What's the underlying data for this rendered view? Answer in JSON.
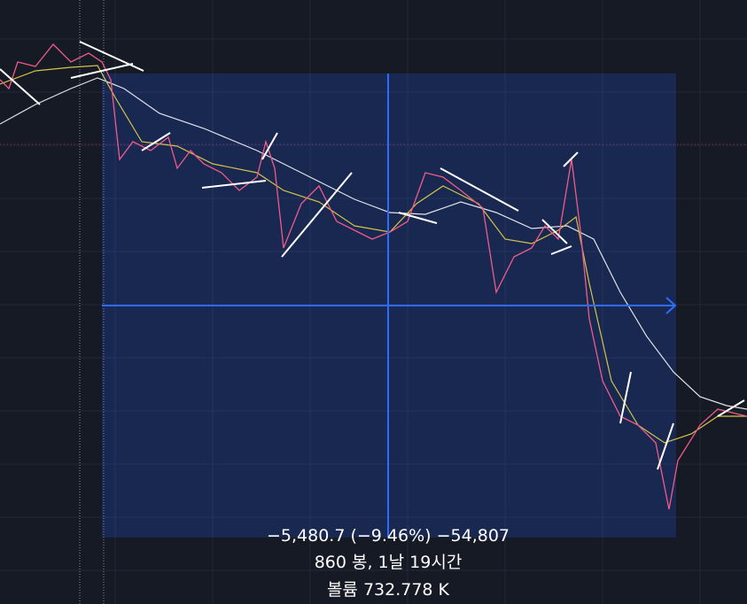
{
  "measure": {
    "change": "−5,480.7 (−9.46%) −54,807",
    "range": "860 봉, 1날 19시간",
    "volume": "볼륨 732.778 K"
  }
}
